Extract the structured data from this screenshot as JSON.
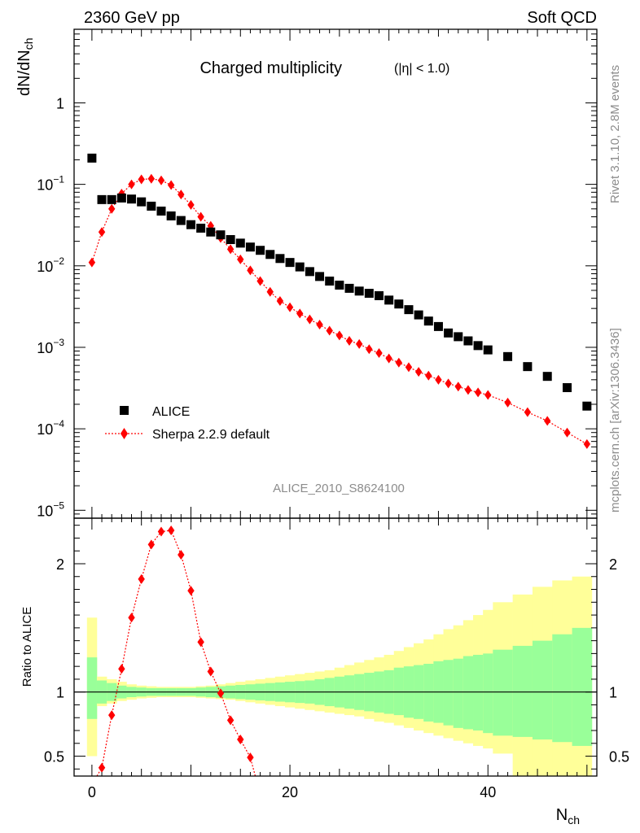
{
  "header": {
    "left": "2360 GeV pp",
    "right": "Soft QCD"
  },
  "side_labels": {
    "rivet": "Rivet 3.1.10,  2.8M events",
    "mcplots": "mcplots.cern.ch [arXiv:1306.3436]"
  },
  "analysis_id": "ALICE_2010_S8624100",
  "colors": {
    "data": "#000000",
    "mc": "#ff0000",
    "band_inner": "#99ff99",
    "band_outer": "#ffff99"
  },
  "chart_data": [
    {
      "type": "scatter",
      "panel": "main",
      "title_main": "Charged multiplicity",
      "title_cut": "(|η| < 1.0)",
      "ylabel_main": "dN/dN",
      "ylabel_sub": "ch",
      "yscale": "log",
      "ylim": [
        8e-06,
        8
      ],
      "xlim": [
        -1.8,
        51
      ],
      "ytick_labels": [
        {
          "value": 1e-05,
          "base": "10",
          "exp": "−5"
        },
        {
          "value": 0.0001,
          "base": "10",
          "exp": "−4"
        },
        {
          "value": 0.001,
          "base": "10",
          "exp": "−3"
        },
        {
          "value": 0.01,
          "base": "10",
          "exp": "−2"
        },
        {
          "value": 0.1,
          "base": "10",
          "exp": "−1"
        },
        {
          "value": 1,
          "base": "1",
          "exp": ""
        }
      ],
      "legend": {
        "position": "bottom-left",
        "entries": [
          "ALICE",
          "Sherpa 2.2.9 default"
        ]
      },
      "series": [
        {
          "name": "ALICE",
          "marker": "square",
          "x": [
            0,
            1,
            2,
            3,
            4,
            5,
            6,
            7,
            8,
            9,
            10,
            11,
            12,
            13,
            14,
            15,
            16,
            17,
            18,
            19,
            20,
            21,
            22,
            23,
            24,
            25,
            26,
            27,
            28,
            29,
            30,
            31,
            32,
            33,
            34,
            35,
            36,
            37,
            38,
            39,
            40,
            42,
            44,
            46,
            48,
            50
          ],
          "y": [
            0.21,
            0.065,
            0.065,
            0.068,
            0.066,
            0.061,
            0.054,
            0.047,
            0.041,
            0.036,
            0.032,
            0.029,
            0.026,
            0.024,
            0.021,
            0.019,
            0.017,
            0.0155,
            0.0138,
            0.0123,
            0.011,
            0.0097,
            0.0085,
            0.0074,
            0.0065,
            0.0058,
            0.0053,
            0.0049,
            0.0046,
            0.0043,
            0.0038,
            0.0034,
            0.0029,
            0.0025,
            0.0021,
            0.0018,
            0.0015,
            0.00135,
            0.0012,
            0.00105,
            0.00093,
            0.00077,
            0.00058,
            0.00044,
            0.00032,
            0.00019
          ]
        },
        {
          "name": "Sherpa 2.2.9 default",
          "marker": "diamond",
          "line": "dotted",
          "x": [
            0,
            1,
            2,
            3,
            4,
            5,
            6,
            7,
            8,
            9,
            10,
            11,
            12,
            13,
            14,
            15,
            16,
            17,
            18,
            19,
            20,
            21,
            22,
            23,
            24,
            25,
            26,
            27,
            28,
            29,
            30,
            31,
            32,
            33,
            34,
            35,
            36,
            37,
            38,
            39,
            40,
            42,
            44,
            46,
            48,
            50
          ],
          "y": [
            0.011,
            0.026,
            0.05,
            0.077,
            0.1,
            0.115,
            0.117,
            0.112,
            0.098,
            0.075,
            0.056,
            0.04,
            0.031,
            0.022,
            0.016,
            0.012,
            0.0088,
            0.0065,
            0.0048,
            0.0037,
            0.0031,
            0.0026,
            0.0022,
            0.0019,
            0.0016,
            0.0014,
            0.0012,
            0.0011,
            0.00095,
            0.00085,
            0.00073,
            0.00065,
            0.00057,
            0.0005,
            0.00045,
            0.0004,
            0.00036,
            0.00033,
            0.0003,
            0.00028,
            0.00026,
            0.00021,
            0.00016,
            0.000125,
            9e-05,
            6.5e-05
          ]
        }
      ]
    },
    {
      "type": "line",
      "panel": "ratio",
      "ylabel": "Ratio to ALICE",
      "ylim": [
        0.345,
        2.355
      ],
      "xlim": [
        -1.8,
        51
      ],
      "yticks": [
        0.5,
        1,
        2
      ],
      "ytick_labels": [
        "0.5",
        "1",
        "2"
      ],
      "xticks": [
        0,
        20,
        40
      ],
      "xtick_labels": [
        "0",
        "20",
        "40"
      ],
      "xlabel_main": "N",
      "xlabel_sub": "ch",
      "bands": {
        "bins": [
          [
            -0.5,
            0.5
          ],
          [
            0.5,
            1.5
          ],
          [
            1.5,
            2.5
          ],
          [
            2.5,
            3.5
          ],
          [
            3.5,
            4.5
          ],
          [
            4.5,
            5.5
          ],
          [
            5.5,
            6.5
          ],
          [
            6.5,
            7.5
          ],
          [
            7.5,
            8.5
          ],
          [
            8.5,
            9.5
          ],
          [
            9.5,
            10.5
          ],
          [
            10.5,
            11.5
          ],
          [
            11.5,
            12.5
          ],
          [
            12.5,
            13.5
          ],
          [
            13.5,
            14.5
          ],
          [
            14.5,
            15.5
          ],
          [
            15.5,
            16.5
          ],
          [
            16.5,
            17.5
          ],
          [
            17.5,
            18.5
          ],
          [
            18.5,
            19.5
          ],
          [
            19.5,
            20.5
          ],
          [
            20.5,
            21.5
          ],
          [
            21.5,
            22.5
          ],
          [
            22.5,
            23.5
          ],
          [
            23.5,
            24.5
          ],
          [
            24.5,
            25.5
          ],
          [
            25.5,
            26.5
          ],
          [
            26.5,
            27.5
          ],
          [
            27.5,
            28.5
          ],
          [
            28.5,
            29.5
          ],
          [
            29.5,
            30.5
          ],
          [
            30.5,
            31.5
          ],
          [
            31.5,
            32.5
          ],
          [
            32.5,
            33.5
          ],
          [
            33.5,
            34.5
          ],
          [
            34.5,
            35.5
          ],
          [
            35.5,
            36.5
          ],
          [
            36.5,
            37.5
          ],
          [
            37.5,
            38.5
          ],
          [
            38.5,
            39.5
          ],
          [
            39.5,
            40.5
          ],
          [
            40.5,
            42.5
          ],
          [
            42.5,
            44.5
          ],
          [
            44.5,
            46.5
          ],
          [
            46.5,
            48.5
          ],
          [
            48.5,
            50.5
          ]
        ],
        "inner_lo": [
          0.79,
          0.91,
          0.93,
          0.95,
          0.96,
          0.965,
          0.97,
          0.97,
          0.97,
          0.97,
          0.97,
          0.965,
          0.96,
          0.955,
          0.95,
          0.945,
          0.94,
          0.935,
          0.93,
          0.925,
          0.92,
          0.915,
          0.91,
          0.9,
          0.89,
          0.88,
          0.87,
          0.86,
          0.85,
          0.84,
          0.83,
          0.82,
          0.8,
          0.79,
          0.77,
          0.76,
          0.74,
          0.72,
          0.71,
          0.7,
          0.68,
          0.66,
          0.65,
          0.63,
          0.61,
          0.58
        ],
        "inner_hi": [
          1.27,
          1.09,
          1.07,
          1.05,
          1.04,
          1.035,
          1.03,
          1.03,
          1.03,
          1.03,
          1.03,
          1.035,
          1.04,
          1.045,
          1.05,
          1.055,
          1.06,
          1.065,
          1.07,
          1.075,
          1.08,
          1.085,
          1.09,
          1.1,
          1.11,
          1.12,
          1.13,
          1.14,
          1.15,
          1.16,
          1.17,
          1.19,
          1.2,
          1.21,
          1.22,
          1.24,
          1.25,
          1.26,
          1.28,
          1.29,
          1.3,
          1.33,
          1.36,
          1.4,
          1.45,
          1.5
        ],
        "outer_lo": [
          0.5,
          0.89,
          0.91,
          0.93,
          0.94,
          0.95,
          0.955,
          0.96,
          0.96,
          0.96,
          0.96,
          0.955,
          0.95,
          0.945,
          0.94,
          0.93,
          0.92,
          0.91,
          0.9,
          0.89,
          0.88,
          0.87,
          0.86,
          0.85,
          0.84,
          0.83,
          0.82,
          0.81,
          0.79,
          0.77,
          0.76,
          0.74,
          0.72,
          0.7,
          0.68,
          0.66,
          0.64,
          0.62,
          0.6,
          0.58,
          0.56,
          0.52,
          0.345,
          0.345,
          0.345,
          0.345
        ],
        "outer_hi": [
          1.58,
          1.12,
          1.1,
          1.08,
          1.06,
          1.05,
          1.045,
          1.04,
          1.04,
          1.04,
          1.04,
          1.045,
          1.05,
          1.06,
          1.07,
          1.08,
          1.09,
          1.1,
          1.11,
          1.12,
          1.13,
          1.14,
          1.15,
          1.16,
          1.17,
          1.19,
          1.21,
          1.23,
          1.25,
          1.27,
          1.29,
          1.32,
          1.35,
          1.38,
          1.41,
          1.45,
          1.49,
          1.52,
          1.56,
          1.6,
          1.64,
          1.7,
          1.76,
          1.82,
          1.87,
          1.9
        ]
      },
      "series": [
        {
          "name": "Sherpa 2.2.9 default",
          "marker": "diamond",
          "line": "dotted",
          "x": [
            0.5,
            1,
            2,
            3,
            4,
            5,
            6,
            7,
            8,
            9,
            10,
            11,
            12,
            13,
            14,
            15,
            16,
            16.5
          ],
          "y": [
            0.345,
            0.41,
            0.82,
            1.18,
            1.58,
            1.88,
            2.15,
            2.25,
            2.26,
            2.07,
            1.79,
            1.39,
            1.16,
            0.99,
            0.78,
            0.63,
            0.49,
            0.345
          ]
        }
      ]
    }
  ]
}
